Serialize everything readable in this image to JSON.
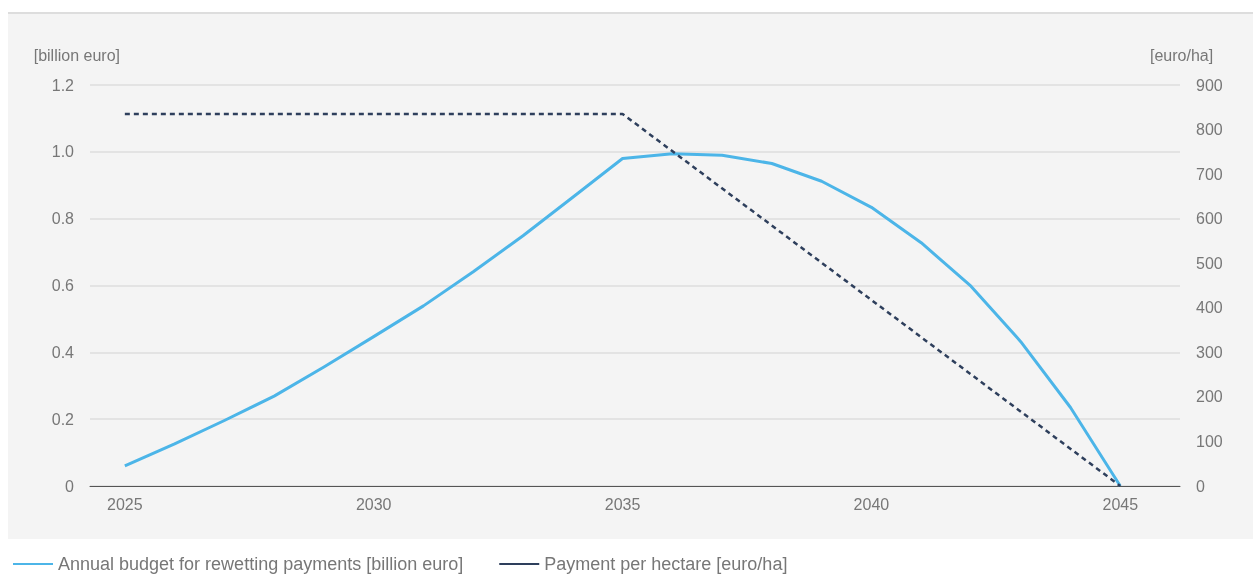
{
  "chart_data": {
    "type": "line",
    "ylabel": "[billion euro]",
    "y2label": "[euro/ha]",
    "series": [
      {
        "name": "Annual budget for rewetting payments [billion euro]",
        "color": "#4cb5e8",
        "line_style": "solid",
        "x": [
          2025,
          2026,
          2027,
          2028,
          2029,
          2030,
          2031,
          2032,
          2033,
          2034,
          2035,
          2036,
          2037,
          2038,
          2039,
          2040,
          2041,
          2042,
          2043,
          2044,
          2045
        ],
        "values": [
          0.06,
          0.126,
          0.196,
          0.269,
          0.356,
          0.447,
          0.539,
          0.641,
          0.749,
          0.864,
          0.98,
          0.994,
          0.99,
          0.965,
          0.912,
          0.834,
          0.728,
          0.598,
          0.432,
          0.235,
          0
        ]
      },
      {
        "name": "Payment per hectare [euro/ha]",
        "color": "#2e3f5c",
        "line_style": "dashed",
        "axis": "y2",
        "x": [
          2025,
          2035,
          2045
        ],
        "values": [
          835,
          835,
          0
        ]
      }
    ],
    "xlim": [
      2024.3,
      2046.2
    ],
    "xticks": [
      2025,
      2030,
      2035,
      2040,
      2045
    ],
    "ylim": [
      0,
      1.2
    ],
    "yticks": [
      0,
      {
        "value": 0.2,
        "label": "0.2"
      },
      {
        "value": 0.4,
        "label": "0.4"
      },
      {
        "value": 0.6,
        "label": "0.6"
      },
      {
        "value": 0.8,
        "label": "0.8"
      },
      {
        "value": 1.0,
        "label": "1.0"
      },
      {
        "value": 1.2,
        "label": "1.2"
      }
    ],
    "y2lim": [
      0,
      900
    ],
    "y2ticks": [
      0,
      100,
      200,
      300,
      400,
      500,
      600,
      700,
      800,
      900
    ],
    "grid": "y",
    "legend": "bottom left",
    "marker": "none"
  }
}
